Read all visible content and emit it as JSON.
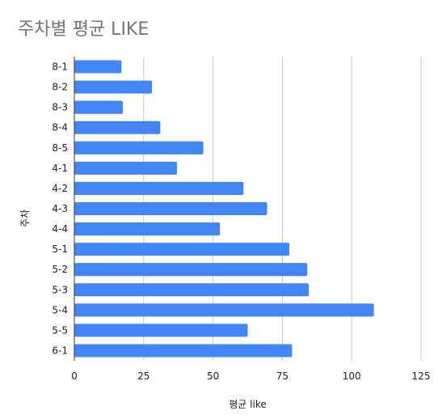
{
  "chart_data": {
    "type": "bar",
    "orientation": "horizontal",
    "title": "주차별 평균 LIKE",
    "xlabel": "평균 like",
    "ylabel": "주차",
    "categories": [
      "8-1",
      "8-2",
      "8-3",
      "8-4",
      "8-5",
      "4-1",
      "4-2",
      "4-3",
      "4-4",
      "5-1",
      "5-2",
      "5-3",
      "5-4",
      "5-5",
      "6-1"
    ],
    "values": [
      17,
      28,
      17.5,
      31,
      46.5,
      37,
      61,
      69.5,
      52.5,
      77.5,
      84,
      84.5,
      108,
      62.5,
      78.5
    ],
    "xlim": [
      0,
      125
    ],
    "xticks": [
      "0",
      "25",
      "50",
      "75",
      "100",
      "125"
    ],
    "grid": true,
    "legend": "none",
    "bar_color": "#4285f4",
    "grid_color": "#cccccc",
    "axis_color": "#333333"
  }
}
